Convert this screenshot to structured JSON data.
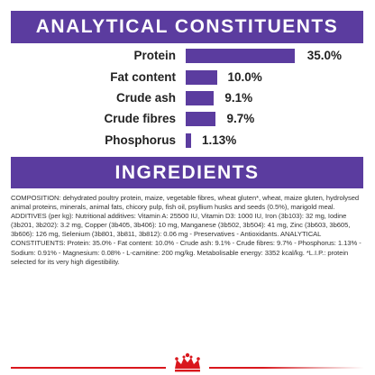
{
  "analytics": {
    "title": "ANALYTICAL CONSTITUENTS",
    "rows": [
      {
        "label": "Protein",
        "value": "35.0%",
        "level_percent": 35.0
      },
      {
        "label": "Fat content",
        "value": "10.0%",
        "level_percent": 10.0
      },
      {
        "label": "Crude ash",
        "value": "9.1%",
        "level_percent": 9.1
      },
      {
        "label": "Crude fibres",
        "value": "9.7%",
        "level_percent": 9.7
      },
      {
        "label": "Phosphorus",
        "value": "1.13%",
        "level_percent": 1.13
      }
    ]
  },
  "ingredients": {
    "title": "INGREDIENTS",
    "composition_text": "COMPOSITION: dehydrated poultry protein, maize, vegetable fibres, wheat gluten*, wheat, maize gluten, hydrolysed animal proteins, minerals, animal fats, chicory pulp, fish oil, psyllium husks and seeds (0.5%), marigold meal. ADDITIVES (per kg): Nutritional additives: Vitamin A: 25500 IU, Vitamin D3: 1000 IU, Iron (3b103): 32 mg, Iodine (3b201, 3b202): 3.2 mg, Copper (3b405, 3b406): 10 mg, Manganese (3b502, 3b504): 41 mg, Zinc (3b603, 3b605, 3b606): 126 mg, Selenium (3b801, 3b811, 3b812): 0.06 mg - Preservatives - Antioxidants. ANALYTICAL CONSTITUENTS: Protein: 35.0% - Fat content: 10.0% - Crude ash: 9.1% - Crude fibres: 9.7% - Phosphorus: 1.13% - Sodium: 0.91% - Magnesium: 0.08% - L-carnitine: 200 mg/kg. Metabolisable energy: 3352 kcal/kg. *L.I.P.: protein selected for its very high digestibility."
  },
  "colors": {
    "accent_purple": "#5b3c9f",
    "brand_red": "#d9171d"
  },
  "footer": {
    "logo_icon": "royal-canin-crown-icon"
  }
}
